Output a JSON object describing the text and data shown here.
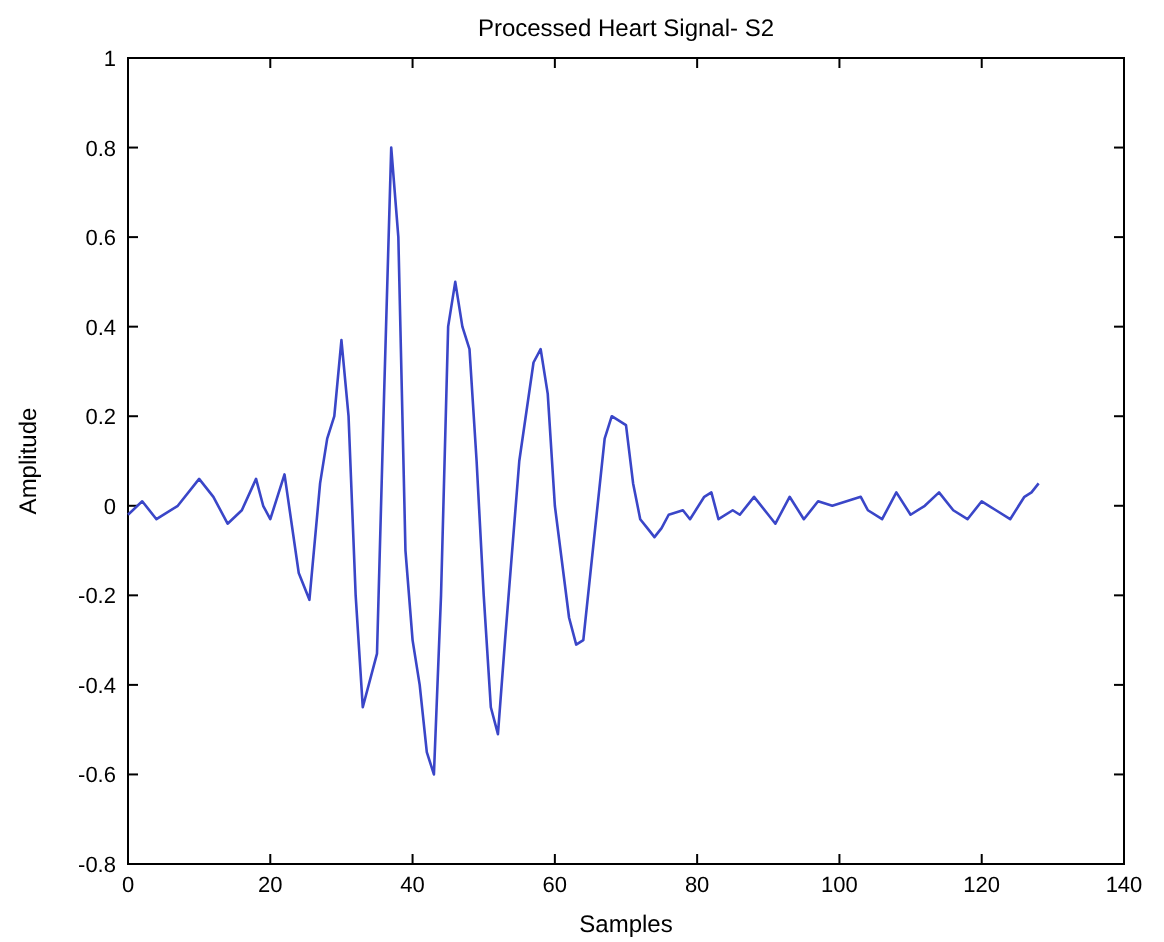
{
  "chart_data": {
    "type": "line",
    "title": "Processed Heart Signal- S2",
    "xlabel": "Samples",
    "ylabel": "Amplitude",
    "xlim": [
      0,
      140
    ],
    "xticks": [
      0,
      20,
      40,
      60,
      80,
      100,
      120,
      140
    ],
    "ylim": [
      -0.8,
      1
    ],
    "yticks": [
      -0.8,
      -0.6,
      -0.4,
      -0.2,
      0,
      0.2,
      0.4,
      0.6,
      0.8,
      1
    ],
    "grid": false,
    "marker": "none",
    "line_style": "solid",
    "series": [
      {
        "color": "#3a46c8",
        "x": [
          0,
          2,
          4,
          7,
          10,
          12,
          14,
          16,
          18,
          19,
          20,
          22,
          24,
          25.5,
          27,
          28,
          29,
          30,
          31,
          32,
          33,
          35,
          36,
          37,
          38,
          39,
          40,
          41,
          42,
          43,
          44,
          45,
          46,
          47,
          48,
          49,
          50,
          51,
          52,
          53,
          55,
          57,
          58,
          59,
          60,
          62,
          63,
          64,
          66,
          67,
          68,
          70,
          71,
          72,
          73,
          74,
          75,
          76,
          78,
          79,
          81,
          82,
          83,
          85,
          86,
          88,
          90,
          91,
          93,
          95,
          97,
          99,
          101,
          103,
          104,
          106,
          108,
          110,
          112,
          114,
          116,
          118,
          120,
          122,
          124,
          126,
          127,
          128
        ],
        "values": [
          -0.02,
          0.01,
          -0.03,
          0,
          0.06,
          0.02,
          -0.04,
          -0.01,
          0.06,
          0,
          -0.03,
          0.07,
          -0.15,
          -0.21,
          0.05,
          0.15,
          0.2,
          0.37,
          0.2,
          -0.2,
          -0.45,
          -0.33,
          0.25,
          0.8,
          0.6,
          -0.1,
          -0.3,
          -0.4,
          -0.55,
          -0.6,
          -0.2,
          0.4,
          0.5,
          0.4,
          0.35,
          0.1,
          -0.2,
          -0.45,
          -0.51,
          -0.3,
          0.1,
          0.32,
          0.35,
          0.25,
          0,
          -0.25,
          -0.31,
          -0.3,
          0,
          0.15,
          0.2,
          0.18,
          0.05,
          -0.03,
          -0.05,
          -0.07,
          -0.05,
          -0.02,
          -0.01,
          -0.03,
          0.02,
          0.03,
          -0.03,
          -0.01,
          -0.02,
          0.02,
          -0.02,
          -0.04,
          0.02,
          -0.03,
          0.01,
          0,
          0.01,
          0.02,
          -0.01,
          -0.03,
          0.03,
          -0.02,
          0,
          0.03,
          -0.01,
          -0.03,
          0.01,
          -0.01,
          -0.03,
          0.02,
          0.03,
          0.05
        ]
      }
    ]
  }
}
